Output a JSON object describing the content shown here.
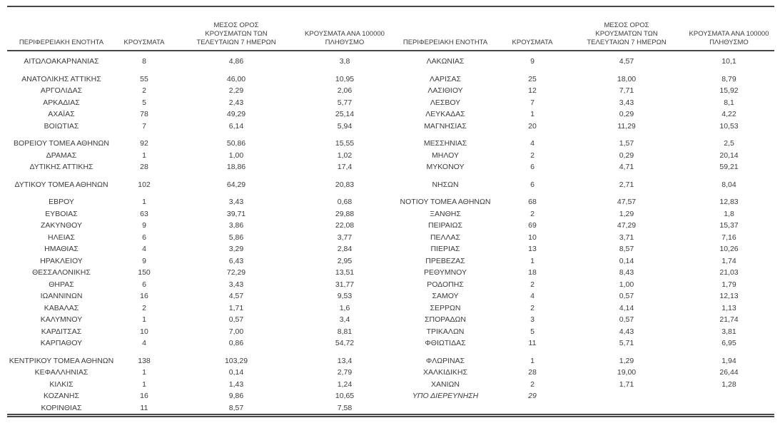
{
  "colors": {
    "background": "#ffffff",
    "text": "#3b3b3b",
    "rule": "#474747"
  },
  "table": {
    "columns": [
      "ΠΕΡΙΦΕΡΕΙΑΚΗ ΕΝΟΤΗΤΑ",
      "ΚΡΟΥΣΜΑΤΑ",
      "ΜΕΣΟΣ ΟΡΟΣ ΚΡΟΥΣΜΑΤΩΝ ΤΩΝ ΤΕΛΕΥΤΑΙΩΝ 7 ΗΜΕΡΩΝ",
      "ΚΡΟΥΣΜΑΤΑ ΑΝΑ 100000 ΠΛΗΘΥΣΜΟ"
    ],
    "row_groups": [
      [
        {
          "left": {
            "region": "ΑΙΤΩΛΟΑΚΑΡΝΑΝΙΑΣ",
            "cases": "8",
            "avg7": "4,86",
            "per100k": "3,8"
          },
          "right": {
            "region": "ΛΑΚΩΝΙΑΣ",
            "cases": "9",
            "avg7": "4,57",
            "per100k": "10,1"
          }
        }
      ],
      [
        {
          "left": {
            "region": "ΑΝΑΤΟΛΙΚΗΣ ΑΤΤΙΚΗΣ",
            "cases": "55",
            "avg7": "46,00",
            "per100k": "10,95"
          },
          "right": {
            "region": "ΛΑΡΙΣΑΣ",
            "cases": "25",
            "avg7": "18,00",
            "per100k": "8,79"
          }
        },
        {
          "left": {
            "region": "ΑΡΓΟΛΙΔΑΣ",
            "cases": "2",
            "avg7": "2,29",
            "per100k": "2,06"
          },
          "right": {
            "region": "ΛΑΣΙΘΙΟΥ",
            "cases": "12",
            "avg7": "7,71",
            "per100k": "15,92"
          }
        },
        {
          "left": {
            "region": "ΑΡΚΑΔΙΑΣ",
            "cases": "5",
            "avg7": "2,43",
            "per100k": "5,77"
          },
          "right": {
            "region": "ΛΕΣΒΟΥ",
            "cases": "7",
            "avg7": "3,43",
            "per100k": "8,1"
          }
        },
        {
          "left": {
            "region": "ΑΧΑΪΑΣ",
            "cases": "78",
            "avg7": "49,29",
            "per100k": "25,14"
          },
          "right": {
            "region": "ΛΕΥΚΑΔΑΣ",
            "cases": "1",
            "avg7": "0,29",
            "per100k": "4,22"
          }
        },
        {
          "left": {
            "region": "ΒΟΙΩΤΙΑΣ",
            "cases": "7",
            "avg7": "6,14",
            "per100k": "5,94"
          },
          "right": {
            "region": "ΜΑΓΝΗΣΙΑΣ",
            "cases": "20",
            "avg7": "11,29",
            "per100k": "10,53"
          }
        }
      ],
      [
        {
          "left": {
            "region": "ΒΟΡΕΙΟΥ ΤΟΜΕΑ ΑΘΗΝΩΝ",
            "cases": "92",
            "avg7": "50,86",
            "per100k": "15,55"
          },
          "right": {
            "region": "ΜΕΣΣΗΝΙΑΣ",
            "cases": "4",
            "avg7": "1,57",
            "per100k": "2,5"
          }
        },
        {
          "left": {
            "region": "ΔΡΑΜΑΣ",
            "cases": "1",
            "avg7": "1,00",
            "per100k": "1,02"
          },
          "right": {
            "region": "ΜΗΛΟΥ",
            "cases": "2",
            "avg7": "0,29",
            "per100k": "20,14"
          }
        },
        {
          "left": {
            "region": "ΔΥΤΙΚΗΣ ΑΤΤΙΚΗΣ",
            "cases": "28",
            "avg7": "18,86",
            "per100k": "17,4"
          },
          "right": {
            "region": "ΜΥΚΟΝΟΥ",
            "cases": "6",
            "avg7": "4,71",
            "per100k": "59,21"
          }
        }
      ],
      [
        {
          "left": {
            "region": "ΔΥΤΙΚΟΥ ΤΟΜΕΑ ΑΘΗΝΩΝ",
            "cases": "102",
            "avg7": "64,29",
            "per100k": "20,83"
          },
          "right": {
            "region": "ΝΗΣΩΝ",
            "cases": "6",
            "avg7": "2,71",
            "per100k": "8,04"
          }
        }
      ],
      [
        {
          "left": {
            "region": "ΕΒΡΟΥ",
            "cases": "1",
            "avg7": "3,43",
            "per100k": "0,68"
          },
          "right": {
            "region": "ΝΟΤΙΟΥ ΤΟΜΕΑ ΑΘΗΝΩΝ",
            "cases": "68",
            "avg7": "47,57",
            "per100k": "12,83"
          }
        },
        {
          "left": {
            "region": "ΕΥΒΟΙΑΣ",
            "cases": "63",
            "avg7": "39,71",
            "per100k": "29,88"
          },
          "right": {
            "region": "ΞΑΝΘΗΣ",
            "cases": "2",
            "avg7": "1,29",
            "per100k": "1,8"
          }
        },
        {
          "left": {
            "region": "ΖΑΚΥΝΘΟΥ",
            "cases": "9",
            "avg7": "3,86",
            "per100k": "22,08"
          },
          "right": {
            "region": "ΠΕΙΡΑΙΩΣ",
            "cases": "69",
            "avg7": "47,29",
            "per100k": "15,37"
          }
        },
        {
          "left": {
            "region": "ΗΛΕΙΑΣ",
            "cases": "6",
            "avg7": "5,86",
            "per100k": "3,77"
          },
          "right": {
            "region": "ΠΕΛΛΑΣ",
            "cases": "10",
            "avg7": "3,71",
            "per100k": "7,16"
          }
        },
        {
          "left": {
            "region": "ΗΜΑΘΙΑΣ",
            "cases": "4",
            "avg7": "3,29",
            "per100k": "2,84"
          },
          "right": {
            "region": "ΠΙΕΡΙΑΣ",
            "cases": "13",
            "avg7": "8,57",
            "per100k": "10,26"
          }
        },
        {
          "left": {
            "region": "ΗΡΑΚΛΕΙΟΥ",
            "cases": "9",
            "avg7": "6,43",
            "per100k": "2,95"
          },
          "right": {
            "region": "ΠΡΕΒΕΖΑΣ",
            "cases": "1",
            "avg7": "0,14",
            "per100k": "1,74"
          }
        },
        {
          "left": {
            "region": "ΘΕΣΣΑΛΟΝΙΚΗΣ",
            "cases": "150",
            "avg7": "72,29",
            "per100k": "13,51"
          },
          "right": {
            "region": "ΡΕΘΥΜΝΟΥ",
            "cases": "18",
            "avg7": "8,43",
            "per100k": "21,03"
          }
        },
        {
          "left": {
            "region": "ΘΗΡΑΣ",
            "cases": "6",
            "avg7": "3,43",
            "per100k": "31,77"
          },
          "right": {
            "region": "ΡΟΔΟΠΗΣ",
            "cases": "2",
            "avg7": "1,00",
            "per100k": "1,79"
          }
        },
        {
          "left": {
            "region": "ΙΩΑΝΝΙΝΩΝ",
            "cases": "16",
            "avg7": "4,57",
            "per100k": "9,53"
          },
          "right": {
            "region": "ΣΑΜΟΥ",
            "cases": "4",
            "avg7": "0,57",
            "per100k": "12,13"
          }
        },
        {
          "left": {
            "region": "ΚΑΒΑΛΑΣ",
            "cases": "2",
            "avg7": "1,71",
            "per100k": "1,6"
          },
          "right": {
            "region": "ΣΕΡΡΩΝ",
            "cases": "2",
            "avg7": "4,14",
            "per100k": "1,13"
          }
        },
        {
          "left": {
            "region": "ΚΑΛΥΜΝΟΥ",
            "cases": "1",
            "avg7": "0,57",
            "per100k": "3,4"
          },
          "right": {
            "region": "ΣΠΟΡΑΔΩΝ",
            "cases": "3",
            "avg7": "0,57",
            "per100k": "21,74"
          }
        },
        {
          "left": {
            "region": "ΚΑΡΔΙΤΣΑΣ",
            "cases": "10",
            "avg7": "7,00",
            "per100k": "8,81"
          },
          "right": {
            "region": "ΤΡΙΚΑΛΩΝ",
            "cases": "5",
            "avg7": "4,43",
            "per100k": "3,81"
          }
        },
        {
          "left": {
            "region": "ΚΑΡΠΑΘΟΥ",
            "cases": "4",
            "avg7": "0,86",
            "per100k": "54,72"
          },
          "right": {
            "region": "ΦΘΙΩΤΙΔΑΣ",
            "cases": "11",
            "avg7": "5,71",
            "per100k": "6,95"
          }
        }
      ],
      [
        {
          "left": {
            "region": "ΚΕΝΤΡΙΚΟΥ ΤΟΜΕΑ ΑΘΗΝΩΝ",
            "cases": "138",
            "avg7": "103,29",
            "per100k": "13,4"
          },
          "right": {
            "region": "ΦΛΩΡΙΝΑΣ",
            "cases": "1",
            "avg7": "1,29",
            "per100k": "1,94"
          }
        },
        {
          "left": {
            "region": "ΚΕΦΑΛΛΗΝΙΑΣ",
            "cases": "1",
            "avg7": "0,14",
            "per100k": "2,79"
          },
          "right": {
            "region": "ΧΑΛΚΙΔΙΚΗΣ",
            "cases": "28",
            "avg7": "19,00",
            "per100k": "26,44"
          }
        },
        {
          "left": {
            "region": "ΚΙΛΚΙΣ",
            "cases": "1",
            "avg7": "1,43",
            "per100k": "1,24"
          },
          "right": {
            "region": "ΧΑΝΙΩΝ",
            "cases": "2",
            "avg7": "1,71",
            "per100k": "1,28"
          }
        },
        {
          "left": {
            "region": "ΚΟΖΑΝΗΣ",
            "cases": "16",
            "avg7": "9,86",
            "per100k": "10,65"
          },
          "right": {
            "region": "ΥΠΟ ΔΙΕΡΕΥΝΗΣΗ",
            "cases": "29",
            "avg7": "",
            "per100k": "",
            "italic": true
          }
        },
        {
          "left": {
            "region": "ΚΟΡΙΝΘΙΑΣ",
            "cases": "11",
            "avg7": "8,57",
            "per100k": "7,58"
          },
          "right": null
        }
      ]
    ]
  }
}
